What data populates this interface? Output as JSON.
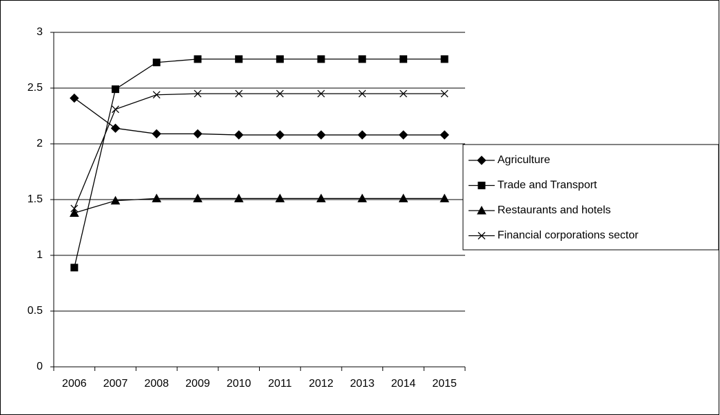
{
  "chart_data": {
    "type": "line",
    "categories": [
      "2006",
      "2007",
      "2008",
      "2009",
      "2010",
      "2011",
      "2012",
      "2013",
      "2014",
      "2015"
    ],
    "series": [
      {
        "name": "Agriculture",
        "color": "#000000",
        "marker": "diamond",
        "values": [
          2.41,
          2.14,
          2.09,
          2.09,
          2.08,
          2.08,
          2.08,
          2.08,
          2.08,
          2.08
        ]
      },
      {
        "name": "Trade and Transport",
        "color": "#000000",
        "marker": "square",
        "values": [
          0.89,
          2.49,
          2.73,
          2.76,
          2.76,
          2.76,
          2.76,
          2.76,
          2.76,
          2.76
        ]
      },
      {
        "name": "Restaurants and hotels",
        "color": "#000000",
        "marker": "triangle",
        "values": [
          1.38,
          1.49,
          1.51,
          1.51,
          1.51,
          1.51,
          1.51,
          1.51,
          1.51,
          1.51
        ]
      },
      {
        "name": "Financial corporations sector",
        "color": "#000000",
        "marker": "x",
        "values": [
          1.42,
          2.31,
          2.44,
          2.45,
          2.45,
          2.45,
          2.45,
          2.45,
          2.45,
          2.45
        ]
      }
    ],
    "ylim": [
      0,
      3
    ],
    "yticks": [
      0,
      0.5,
      1,
      1.5,
      2,
      2.5,
      3
    ],
    "grid": true,
    "legend": "right"
  }
}
